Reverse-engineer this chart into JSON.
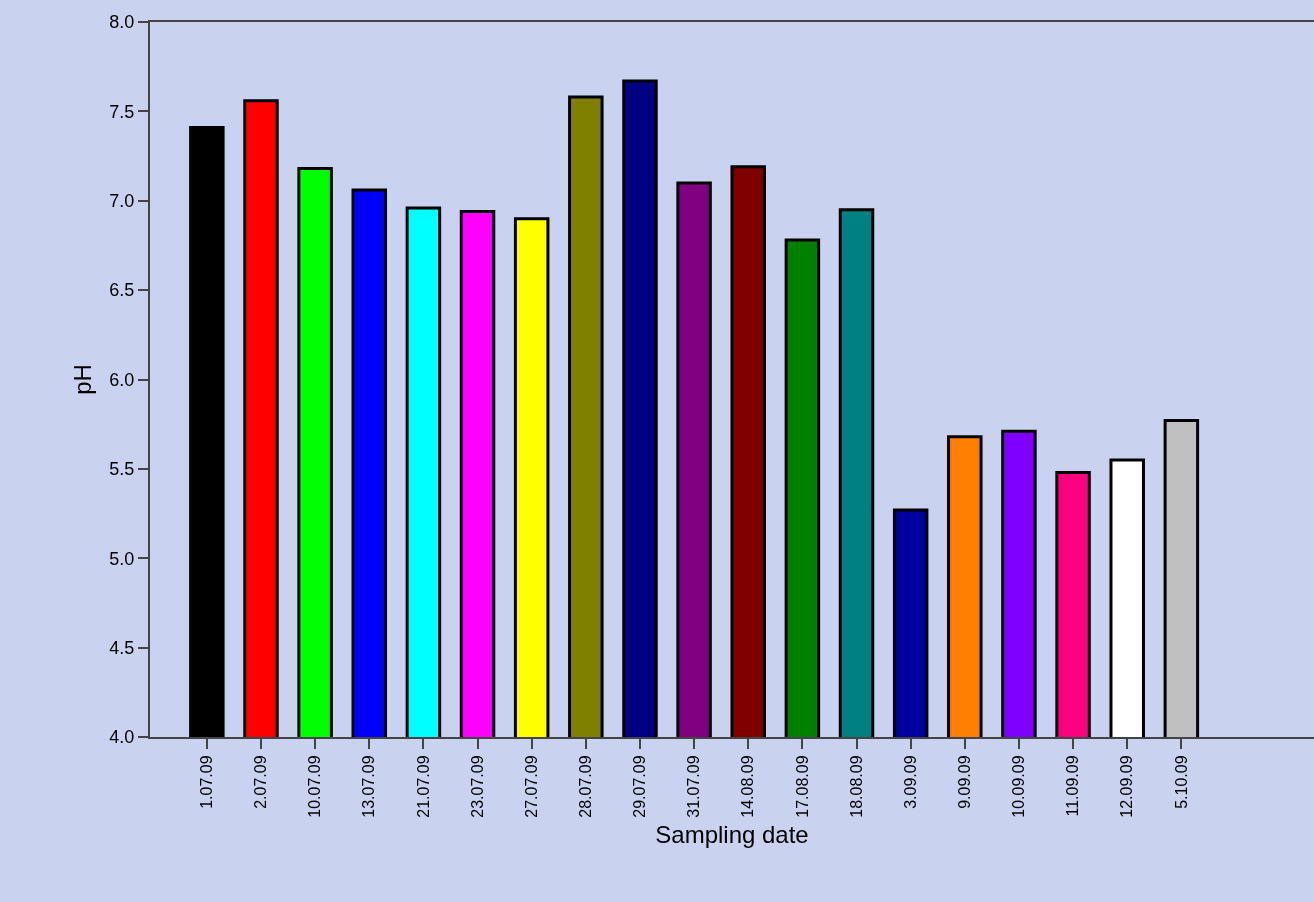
{
  "chart_data": {
    "type": "bar",
    "xlabel": "Sampling date",
    "ylabel": "pH",
    "categories": [
      "1.07.09",
      "2.07.09",
      "10.07.09",
      "13.07.09",
      "21.07.09",
      "23.07.09",
      "27.07.09",
      "28.07.09",
      "29.07.09",
      "31.07.09",
      "14.08.09",
      "17.08.09",
      "18.08.09",
      "3.09.09",
      "9.09.09",
      "10.09.09",
      "11.09.09",
      "12.09.09",
      "5.10.09"
    ],
    "values": [
      7.41,
      7.56,
      7.18,
      7.06,
      6.96,
      6.94,
      6.9,
      7.58,
      7.67,
      7.1,
      7.19,
      6.78,
      6.95,
      5.27,
      5.68,
      5.71,
      5.48,
      5.55,
      5.77
    ],
    "colors": [
      "#000000",
      "#ff0000",
      "#00ff00",
      "#0000ff",
      "#00ffff",
      "#ff00ff",
      "#ffff00",
      "#808000",
      "#000080",
      "#800080",
      "#800000",
      "#008000",
      "#008080",
      "#0000a0",
      "#ff8000",
      "#8000ff",
      "#ff0080",
      "#ffffff",
      "#c0c0c0"
    ],
    "ylim": [
      4,
      8
    ],
    "yticks": [
      {
        "value": 4,
        "label": "4.0"
      },
      {
        "value": 4.5,
        "label": "4.5"
      },
      {
        "value": 5,
        "label": "5.0"
      },
      {
        "value": 5.5,
        "label": "5.5"
      },
      {
        "value": 6,
        "label": "6.0"
      },
      {
        "value": 6.5,
        "label": "6.5"
      },
      {
        "value": 7,
        "label": "7.0"
      },
      {
        "value": 7.5,
        "label": "7.5"
      },
      {
        "value": 8,
        "label": "8.0"
      }
    ],
    "grid": false
  }
}
